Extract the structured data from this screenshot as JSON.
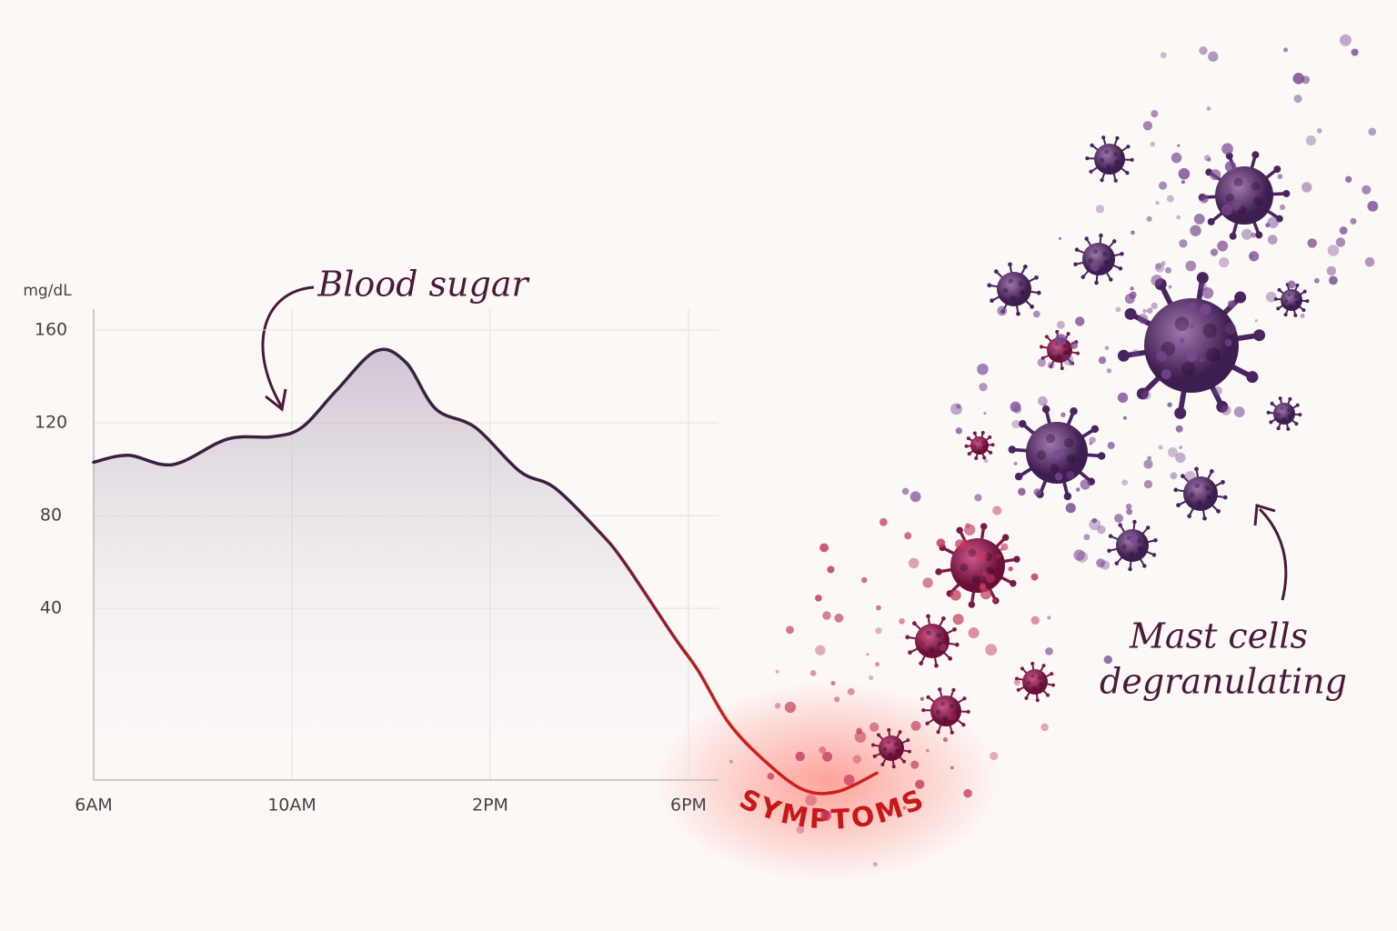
{
  "chart_data": {
    "type": "line",
    "y_label": "mg/dL",
    "x": [
      6,
      6.7,
      7.6,
      8.7,
      9.6,
      10.2,
      10.9,
      11.7,
      12.3,
      12.9,
      13.7,
      14.6,
      15.3,
      16.2,
      16.7,
      17.7,
      18.2,
      18.8,
      19.5,
      20.3,
      21,
      21.8
    ],
    "series": [
      {
        "name": "Blood sugar",
        "color": "#3b2040",
        "highlight_color": "#d0201c",
        "values": [
          103,
          106,
          102,
          113,
          114,
          118,
          134,
          151,
          146,
          126,
          118,
          99,
          92,
          73,
          60,
          28,
          13,
          -9,
          -25,
          -38,
          -39,
          -31
        ]
      }
    ],
    "xlim": [
      6,
      22
    ],
    "ylim": [
      -34,
      169
    ],
    "xticks": [
      {
        "value": 6,
        "label": "6AM"
      },
      {
        "value": 10,
        "label": "10AM"
      },
      {
        "value": 14,
        "label": "2PM"
      },
      {
        "value": 18,
        "label": "6PM"
      }
    ],
    "yticks": [
      40,
      80,
      120,
      160
    ],
    "grid": true,
    "area": true,
    "annotations": [
      "SYMPTOMS",
      "Mast cells",
      "degranulating"
    ]
  }
}
